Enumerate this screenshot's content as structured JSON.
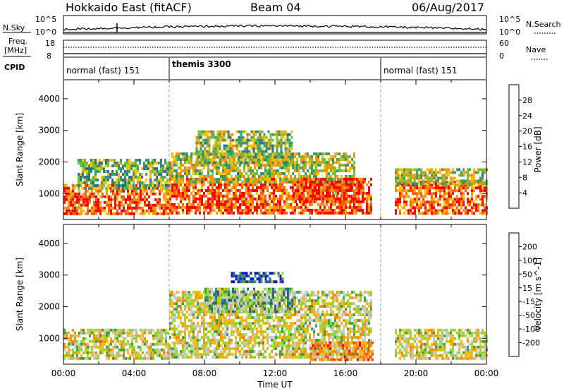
{
  "header": {
    "station": "Hokkaido East (fitACF)",
    "beam": "Beam 04",
    "date": "06/Aug/2017"
  },
  "aux_panels": {
    "nsky_label": "N.Sky",
    "nsky_ticks": [
      "10^5",
      "10^0"
    ],
    "nsearch_label": "N.Search",
    "nsearch_ticks": [
      "10^5",
      "10^0"
    ],
    "freq_label_1": "Freq.",
    "freq_label_2": "[MHz]",
    "freq_ticks": [
      "18",
      "8"
    ],
    "nave_label": "Nave",
    "nave_ticks": [
      "60",
      "0"
    ],
    "cpid_label": "CPID",
    "cpid_segments": [
      {
        "label": "normal (fast) 151",
        "start_h": 0
      },
      {
        "label": "themis 3300",
        "start_h": 6
      },
      {
        "label": "normal (fast) 151",
        "start_h": 18
      }
    ]
  },
  "chart_data": [
    {
      "type": "heatmap",
      "title": "",
      "xlabel": "Time UT",
      "ylabel": "Slant Range [km]",
      "x_ticks": [
        "00:00",
        "04:00",
        "08:00",
        "12:00",
        "16:00",
        "20:00",
        "00:00"
      ],
      "x_range_hours": [
        0,
        24
      ],
      "y_ticks": [
        "1000",
        "2000",
        "3000",
        "4000"
      ],
      "ylim": [
        180,
        4600
      ],
      "colorbar": {
        "label": "Power [dB]",
        "ticks": [
          "4",
          "8",
          "12",
          "16",
          "20",
          "24",
          "28"
        ],
        "range": [
          0,
          32
        ],
        "colors": [
          "#0000ff",
          "#1c3fa0",
          "#2f6f8f",
          "#3a9a6a",
          "#6cc23a",
          "#f6c000",
          "#ff9400",
          "#ff5a00",
          "#ff0000"
        ]
      },
      "mode_boundaries_h": [
        6,
        18
      ],
      "regions": [
        {
          "t0": 0.0,
          "t1": 6.0,
          "r0": 350,
          "r1": 1300,
          "level": 0.82
        },
        {
          "t0": 0.8,
          "t1": 6.0,
          "r0": 1200,
          "r1": 2100,
          "level": 0.45
        },
        {
          "t0": 6.0,
          "t1": 17.5,
          "r0": 400,
          "r1": 1500,
          "level": 0.85
        },
        {
          "t0": 6.0,
          "t1": 16.5,
          "r0": 1400,
          "r1": 2300,
          "level": 0.55
        },
        {
          "t0": 7.5,
          "t1": 13.0,
          "r0": 2000,
          "r1": 3000,
          "level": 0.5
        },
        {
          "t0": 13.0,
          "t1": 17.0,
          "r0": 700,
          "r1": 1500,
          "level": 0.9
        },
        {
          "t0": 18.8,
          "t1": 24.0,
          "r0": 400,
          "r1": 1400,
          "level": 0.8
        },
        {
          "t0": 18.8,
          "t1": 24.0,
          "r0": 1300,
          "r1": 1800,
          "level": 0.55
        }
      ]
    },
    {
      "type": "heatmap",
      "title": "",
      "xlabel": "Time UT",
      "ylabel": "Slant Range [km]",
      "x_ticks": [
        "00:00",
        "04:00",
        "08:00",
        "12:00",
        "16:00",
        "20:00",
        "00:00"
      ],
      "x_range_hours": [
        0,
        24
      ],
      "y_ticks": [
        "1000",
        "2000",
        "3000",
        "4000"
      ],
      "ylim": [
        180,
        4600
      ],
      "colorbar": {
        "label": "Velocity [m s^-1]",
        "ticks": [
          "200",
          "100",
          "50",
          "15",
          "-15",
          "-50",
          "-100",
          "-200"
        ],
        "range": [
          -250,
          250
        ],
        "colors": [
          "#ff0000",
          "#ff5000",
          "#ff8c00",
          "#f6b800",
          "#c8c8c8",
          "#8fd830",
          "#3aa040",
          "#2a60a0",
          "#1818c8"
        ]
      },
      "mode_boundaries_h": [
        6,
        18
      ],
      "regions": [
        {
          "t0": 0.0,
          "t1": 6.0,
          "r0": 350,
          "r1": 1300,
          "level": 0.5
        },
        {
          "t0": 6.0,
          "t1": 17.5,
          "r0": 400,
          "r1": 2500,
          "level": 0.5
        },
        {
          "t0": 8.0,
          "t1": 13.0,
          "r0": 1800,
          "r1": 2600,
          "level": 0.65
        },
        {
          "t0": 9.5,
          "t1": 12.5,
          "r0": 2800,
          "r1": 3100,
          "level": 0.88
        },
        {
          "t0": 14.0,
          "t1": 17.5,
          "r0": 300,
          "r1": 900,
          "level": 0.3
        },
        {
          "t0": 18.8,
          "t1": 24.0,
          "r0": 400,
          "r1": 1300,
          "level": 0.5
        }
      ]
    }
  ]
}
